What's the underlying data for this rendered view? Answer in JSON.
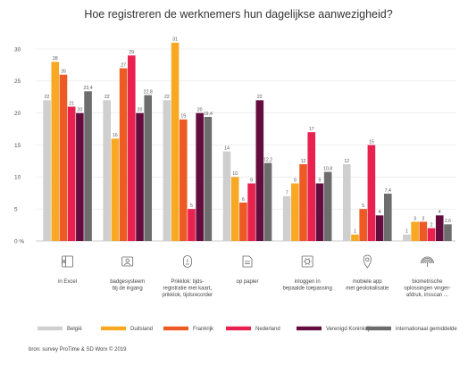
{
  "chart_data": {
    "type": "bar",
    "title": "Hoe registreren de werknemers hun dagelijkse aanwezigheid?",
    "ylabel": "%",
    "ylim": [
      0,
      30
    ],
    "yticks": [
      0,
      5,
      10,
      15,
      20,
      25,
      30
    ],
    "grid": true,
    "legend_position": "bottom",
    "categories": [
      [
        "in Excel"
      ],
      [
        "badgesysteem",
        "bij de ingang"
      ],
      [
        "Prikklok: tijds-",
        "registratie met kaart,",
        "prikklok, tijdsrecorder"
      ],
      [
        "op papier"
      ],
      [
        "inloggen in",
        "bepaalde toepassing"
      ],
      [
        "mobiele app",
        "met geolokalisatie"
      ],
      [
        "biometrische",
        "oplossingen vinger-",
        "afdruk, irisscan ..."
      ]
    ],
    "series": [
      {
        "name": "België",
        "color": "#cfcfcf",
        "values": [
          22,
          22,
          22,
          14,
          7,
          12,
          1
        ]
      },
      {
        "name": "Duitsland",
        "color": "#f9a823",
        "values": [
          28,
          16,
          31,
          10,
          9,
          1,
          3
        ]
      },
      {
        "name": "Frankrijk",
        "color": "#ee5a24",
        "values": [
          26,
          27,
          19,
          6,
          12,
          5,
          3
        ]
      },
      {
        "name": "Nederland",
        "color": "#e8214f",
        "values": [
          21,
          29,
          5,
          9,
          17,
          15,
          2
        ]
      },
      {
        "name": "Verenigd Koninkrijk",
        "color": "#650c3f",
        "values": [
          20,
          20,
          20,
          22,
          9,
          4,
          4
        ]
      },
      {
        "name": "internationaal gemiddelde",
        "color": "#6d6d6d",
        "values": [
          23.4,
          22.8,
          19.4,
          12.2,
          10.8,
          7.4,
          2.6
        ]
      }
    ],
    "value_labels": [
      [
        "22",
        "22",
        "22",
        "14",
        "7",
        "12",
        "1"
      ],
      [
        "28",
        "16",
        "31",
        "10",
        "9",
        "1",
        "3"
      ],
      [
        "26",
        "27",
        "19",
        "6",
        "12",
        "5",
        "3"
      ],
      [
        "21",
        "29",
        "5",
        "9",
        "17",
        "15",
        "2"
      ],
      [
        "20",
        "20",
        "20",
        "22",
        "9",
        "4",
        "4"
      ],
      [
        "23,4",
        "22,8",
        "19,4",
        "12,2",
        "10,8",
        "7,4",
        "2,6"
      ]
    ],
    "category_icons": [
      "excel-icon",
      "badge-icon",
      "time-clock-icon",
      "paper-icon",
      "login-icon",
      "location-pin-icon",
      "fingerprint-icon"
    ]
  },
  "source": "bron: survey ProTime & SD Worx © 2019"
}
